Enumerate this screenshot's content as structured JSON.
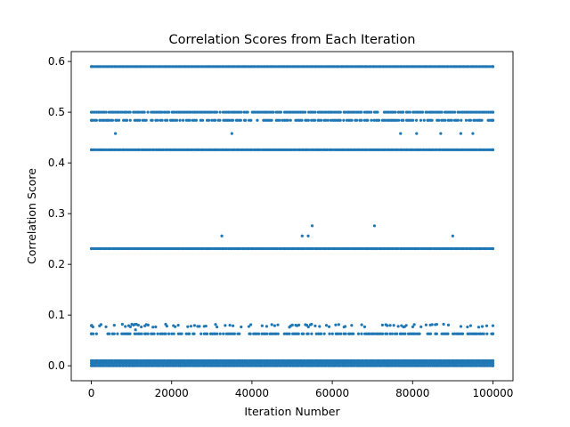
{
  "chart_data": {
    "type": "scatter",
    "title": "Correlation Scores from Each Iteration",
    "xlabel": "Iteration Number",
    "ylabel": "Correlation Score",
    "xlim": [
      -5000,
      105000
    ],
    "ylim": [
      -0.0295,
      0.6195
    ],
    "xticks": [
      0,
      20000,
      40000,
      60000,
      80000,
      100000
    ],
    "xtick_labels": [
      "0",
      "20000",
      "40000",
      "60000",
      "80000",
      "100000"
    ],
    "yticks": [
      0.0,
      0.1,
      0.2,
      0.3,
      0.4,
      0.5,
      0.6
    ],
    "ytick_labels": [
      "0.0",
      "0.1",
      "0.2",
      "0.3",
      "0.4",
      "0.5",
      "0.6"
    ],
    "grid": false,
    "marker_color": "#1f77b4",
    "x_range": [
      0,
      100000
    ],
    "dense_bands": [
      {
        "y": 0.59,
        "coverage": "continuous"
      },
      {
        "y": 0.5,
        "coverage": "mostly continuous"
      },
      {
        "y": 0.484,
        "coverage": "frequent, with gaps"
      },
      {
        "y": 0.426,
        "coverage": "continuous"
      },
      {
        "y": 0.231,
        "coverage": "continuous"
      },
      {
        "y": 0.079,
        "coverage": "scattered"
      },
      {
        "y": 0.063,
        "coverage": "frequent, with gaps"
      },
      {
        "y": 0.01,
        "coverage": "continuous"
      },
      {
        "y": 0.005,
        "coverage": "continuous"
      },
      {
        "y": 0.0,
        "coverage": "continuous"
      }
    ],
    "isolated_points": [
      {
        "x": 6000,
        "y": 0.458
      },
      {
        "x": 35000,
        "y": 0.458
      },
      {
        "x": 77000,
        "y": 0.458
      },
      {
        "x": 81000,
        "y": 0.458
      },
      {
        "x": 87000,
        "y": 0.458
      },
      {
        "x": 92000,
        "y": 0.458
      },
      {
        "x": 95000,
        "y": 0.458
      },
      {
        "x": 32500,
        "y": 0.256
      },
      {
        "x": 52500,
        "y": 0.256
      },
      {
        "x": 54000,
        "y": 0.256
      },
      {
        "x": 55000,
        "y": 0.276
      },
      {
        "x": 70500,
        "y": 0.276
      },
      {
        "x": 90000,
        "y": 0.256
      },
      {
        "x": 11000,
        "y": 0.071
      }
    ]
  }
}
